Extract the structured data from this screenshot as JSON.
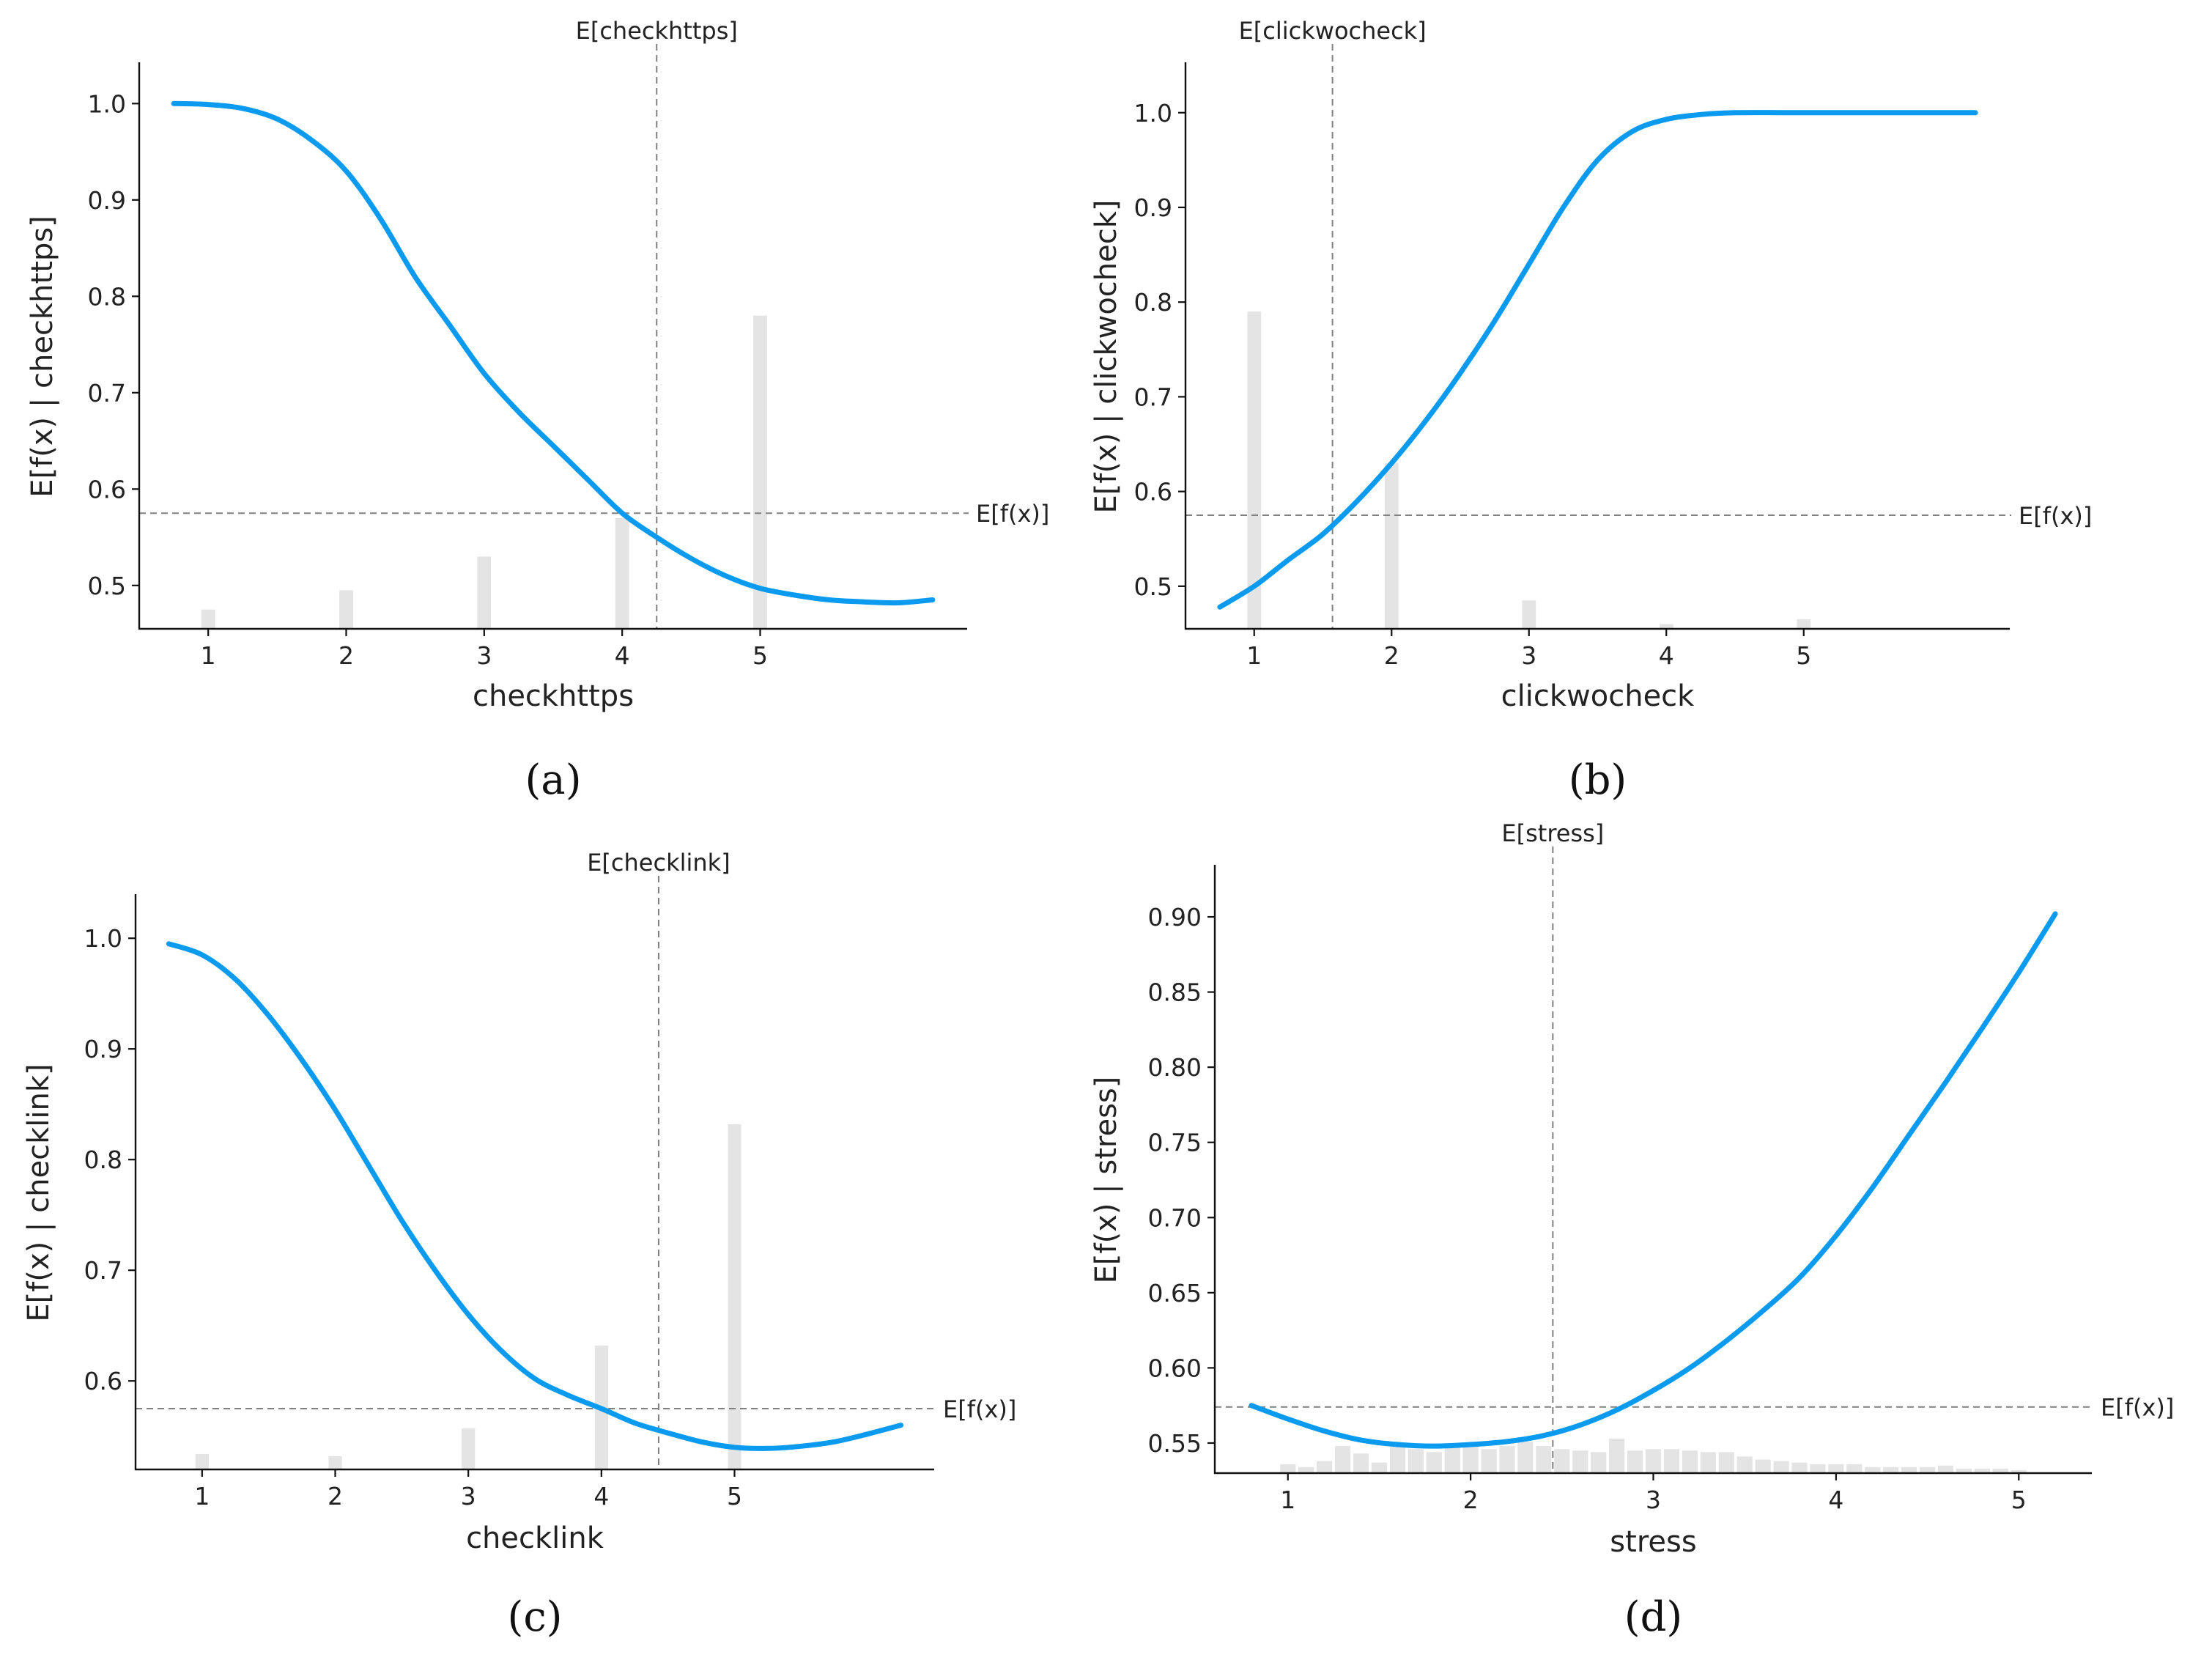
{
  "chart_data": [
    {
      "type": "line",
      "panel_label": "(a)",
      "xlabel": "checkhttps",
      "ylabel": "E[f(x) | checkhttps]",
      "xlim": [
        0.5,
        6.5
      ],
      "ylim": [
        0.455,
        1.02
      ],
      "xticks": [
        1,
        2,
        3,
        4,
        5
      ],
      "yticks": [
        0.5,
        0.6,
        0.7,
        0.8,
        0.9,
        1.0
      ],
      "ytick_labels": [
        "0.5",
        "0.6",
        "0.7",
        "0.8",
        "0.9",
        "1.0"
      ],
      "mean_x": 4.25,
      "mean_x_label": "E[checkhttps]",
      "mean_y": 0.575,
      "mean_y_label": "E[f(x)]",
      "curve": {
        "x": [
          0.75,
          1.0,
          1.25,
          1.5,
          1.75,
          2.0,
          2.25,
          2.5,
          2.75,
          3.0,
          3.25,
          3.5,
          3.75,
          4.0,
          4.25,
          4.5,
          4.75,
          5.0,
          5.25,
          5.5,
          5.75,
          6.0,
          6.25
        ],
        "y": [
          1.0,
          0.999,
          0.995,
          0.984,
          0.962,
          0.93,
          0.88,
          0.82,
          0.77,
          0.72,
          0.68,
          0.645,
          0.61,
          0.575,
          0.55,
          0.528,
          0.51,
          0.497,
          0.49,
          0.485,
          0.483,
          0.482,
          0.485
        ]
      },
      "histogram": {
        "x": [
          1,
          2,
          3,
          4,
          5
        ],
        "y": [
          0.475,
          0.495,
          0.53,
          0.57,
          0.78
        ],
        "width": 0.1
      }
    },
    {
      "type": "line",
      "panel_label": "(b)",
      "xlabel": "clickwocheck",
      "ylabel": "E[f(x) | clickwocheck]",
      "xlim": [
        0.5,
        6.5
      ],
      "ylim": [
        0.455,
        1.03
      ],
      "xticks": [
        1,
        2,
        3,
        4,
        5
      ],
      "yticks": [
        0.5,
        0.6,
        0.7,
        0.8,
        0.9,
        1.0
      ],
      "ytick_labels": [
        "0.5",
        "0.6",
        "0.7",
        "0.8",
        "0.9",
        "1.0"
      ],
      "mean_x": 1.57,
      "mean_x_label": "E[clickwocheck]",
      "mean_y": 0.575,
      "mean_y_label": "E[f(x)]",
      "curve": {
        "x": [
          0.75,
          1.0,
          1.25,
          1.5,
          1.75,
          2.0,
          2.25,
          2.5,
          2.75,
          3.0,
          3.25,
          3.5,
          3.75,
          4.0,
          4.25,
          4.5,
          5.0,
          5.5,
          6.0,
          6.25
        ],
        "y": [
          0.478,
          0.5,
          0.528,
          0.555,
          0.59,
          0.63,
          0.675,
          0.725,
          0.78,
          0.84,
          0.9,
          0.95,
          0.98,
          0.993,
          0.998,
          1.0,
          1.0,
          1.0,
          1.0,
          1.0
        ]
      },
      "histogram": {
        "x": [
          1,
          2,
          3,
          4,
          5
        ],
        "y": [
          0.79,
          0.63,
          0.485,
          0.46,
          0.465
        ],
        "width": 0.1
      }
    },
    {
      "type": "line",
      "panel_label": "(c)",
      "xlabel": "checklink",
      "ylabel": "E[f(x) | checklink]",
      "xlim": [
        0.5,
        6.5
      ],
      "ylim": [
        0.52,
        1.02
      ],
      "xticks": [
        1,
        2,
        3,
        4,
        5
      ],
      "yticks": [
        0.6,
        0.7,
        0.8,
        0.9,
        1.0
      ],
      "ytick_labels": [
        "0.6",
        "0.7",
        "0.8",
        "0.9",
        "1.0"
      ],
      "mean_x": 4.43,
      "mean_x_label": "E[checklink]",
      "mean_y": 0.575,
      "mean_y_label": "E[f(x)]",
      "curve": {
        "x": [
          0.75,
          1.0,
          1.25,
          1.5,
          1.75,
          2.0,
          2.25,
          2.5,
          2.75,
          3.0,
          3.25,
          3.5,
          3.75,
          4.0,
          4.25,
          4.5,
          4.75,
          5.0,
          5.25,
          5.5,
          5.75,
          6.0,
          6.25
        ],
        "y": [
          0.995,
          0.985,
          0.963,
          0.93,
          0.89,
          0.845,
          0.795,
          0.745,
          0.7,
          0.66,
          0.627,
          0.602,
          0.587,
          0.575,
          0.562,
          0.553,
          0.545,
          0.54,
          0.539,
          0.541,
          0.545,
          0.552,
          0.56
        ]
      },
      "histogram": {
        "x": [
          1,
          2,
          3,
          4,
          5
        ],
        "y": [
          0.534,
          0.532,
          0.557,
          0.632,
          0.832
        ],
        "width": 0.1
      }
    },
    {
      "type": "line",
      "panel_label": "(d)",
      "xlabel": "stress",
      "ylabel": "E[f(x) | stress]",
      "xlim": [
        0.6,
        5.4
      ],
      "ylim": [
        0.53,
        0.92
      ],
      "xticks": [
        1,
        2,
        3,
        4,
        5
      ],
      "yticks": [
        0.55,
        0.6,
        0.65,
        0.7,
        0.75,
        0.8,
        0.85,
        0.9
      ],
      "ytick_labels": [
        "0.55",
        "0.60",
        "0.65",
        "0.70",
        "0.75",
        "0.80",
        "0.85",
        "0.90"
      ],
      "mean_x": 2.45,
      "mean_x_label": "E[stress]",
      "mean_y": 0.574,
      "mean_y_label": "E[f(x)]",
      "curve": {
        "x": [
          0.8,
          1.0,
          1.2,
          1.4,
          1.6,
          1.8,
          2.0,
          2.2,
          2.4,
          2.6,
          2.8,
          3.0,
          3.2,
          3.4,
          3.6,
          3.8,
          4.0,
          4.2,
          4.4,
          4.6,
          4.8,
          5.0,
          5.2
        ],
        "y": [
          0.575,
          0.566,
          0.558,
          0.552,
          0.549,
          0.548,
          0.549,
          0.551,
          0.555,
          0.562,
          0.572,
          0.585,
          0.6,
          0.618,
          0.638,
          0.66,
          0.688,
          0.72,
          0.755,
          0.79,
          0.826,
          0.863,
          0.902
        ]
      },
      "histogram": {
        "x": [
          1.0,
          1.1,
          1.2,
          1.3,
          1.4,
          1.5,
          1.6,
          1.7,
          1.8,
          1.9,
          2.0,
          2.1,
          2.2,
          2.3,
          2.4,
          2.5,
          2.6,
          2.7,
          2.8,
          2.9,
          3.0,
          3.1,
          3.2,
          3.3,
          3.4,
          3.5,
          3.6,
          3.7,
          3.8,
          3.9,
          4.0,
          4.1,
          4.2,
          4.3,
          4.4,
          4.5,
          4.6,
          4.7,
          4.8,
          4.9,
          5.0
        ],
        "y": [
          0.536,
          0.534,
          0.538,
          0.548,
          0.543,
          0.537,
          0.55,
          0.546,
          0.544,
          0.547,
          0.55,
          0.546,
          0.548,
          0.551,
          0.548,
          0.546,
          0.545,
          0.544,
          0.553,
          0.545,
          0.546,
          0.546,
          0.545,
          0.544,
          0.544,
          0.541,
          0.539,
          0.538,
          0.537,
          0.536,
          0.536,
          0.536,
          0.534,
          0.534,
          0.534,
          0.534,
          0.535,
          0.533,
          0.533,
          0.533,
          0.532
        ],
        "width": 0.085
      }
    }
  ]
}
